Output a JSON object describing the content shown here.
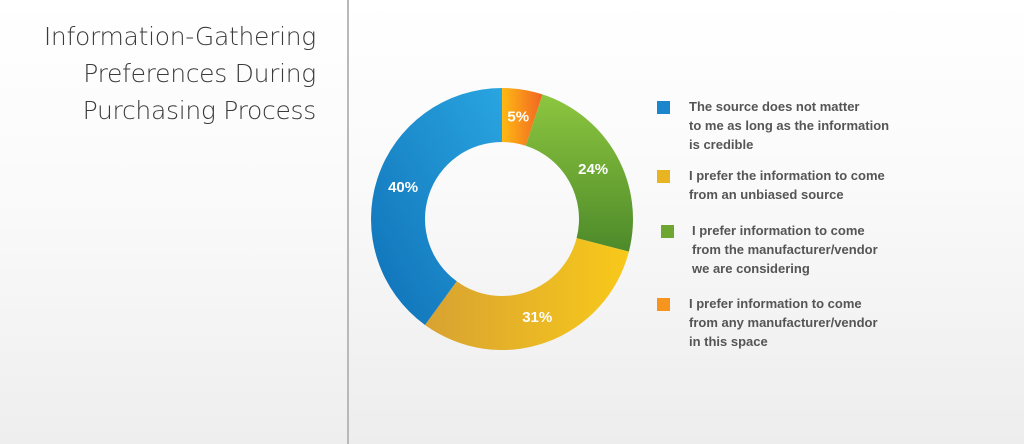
{
  "header": {
    "title_lines": [
      "Information-Gathering",
      "Preferences During",
      "Purchasing Process"
    ]
  },
  "chart_data": {
    "type": "pie",
    "style": "donut",
    "slices": [
      {
        "label": "I prefer information to come from any manufacturer/vendor in this space",
        "value": 5,
        "value_label": "5%",
        "color": "#F7941D"
      },
      {
        "label": "I prefer information to come from the manufacturer/vendor we are considering",
        "value": 24,
        "value_label": "24%",
        "color": "#6FA632"
      },
      {
        "label": "I prefer the information to come from an unbiased source",
        "value": 31,
        "value_label": "31%",
        "color": "#E9B422"
      },
      {
        "label": "The source does not matter to me as long as the information is credible",
        "value": 40,
        "value_label": "40%",
        "color": "#1C86CC"
      }
    ],
    "legend": [
      {
        "lines": [
          "The source does not matter",
          "to me as long as the information",
          "is credible"
        ],
        "color": "#1C86CC"
      },
      {
        "lines": [
          "I prefer the information to come",
          "from an unbiased source"
        ],
        "color": "#E9B422"
      },
      {
        "lines": [
          "I prefer information to come",
          "from the manufacturer/vendor",
          "we are considering"
        ],
        "color": "#6FA632"
      },
      {
        "lines": [
          "I prefer information to come",
          "from any manufacturer/vendor",
          "in this space"
        ],
        "color": "#F7941D"
      }
    ],
    "legend_position": "right"
  }
}
